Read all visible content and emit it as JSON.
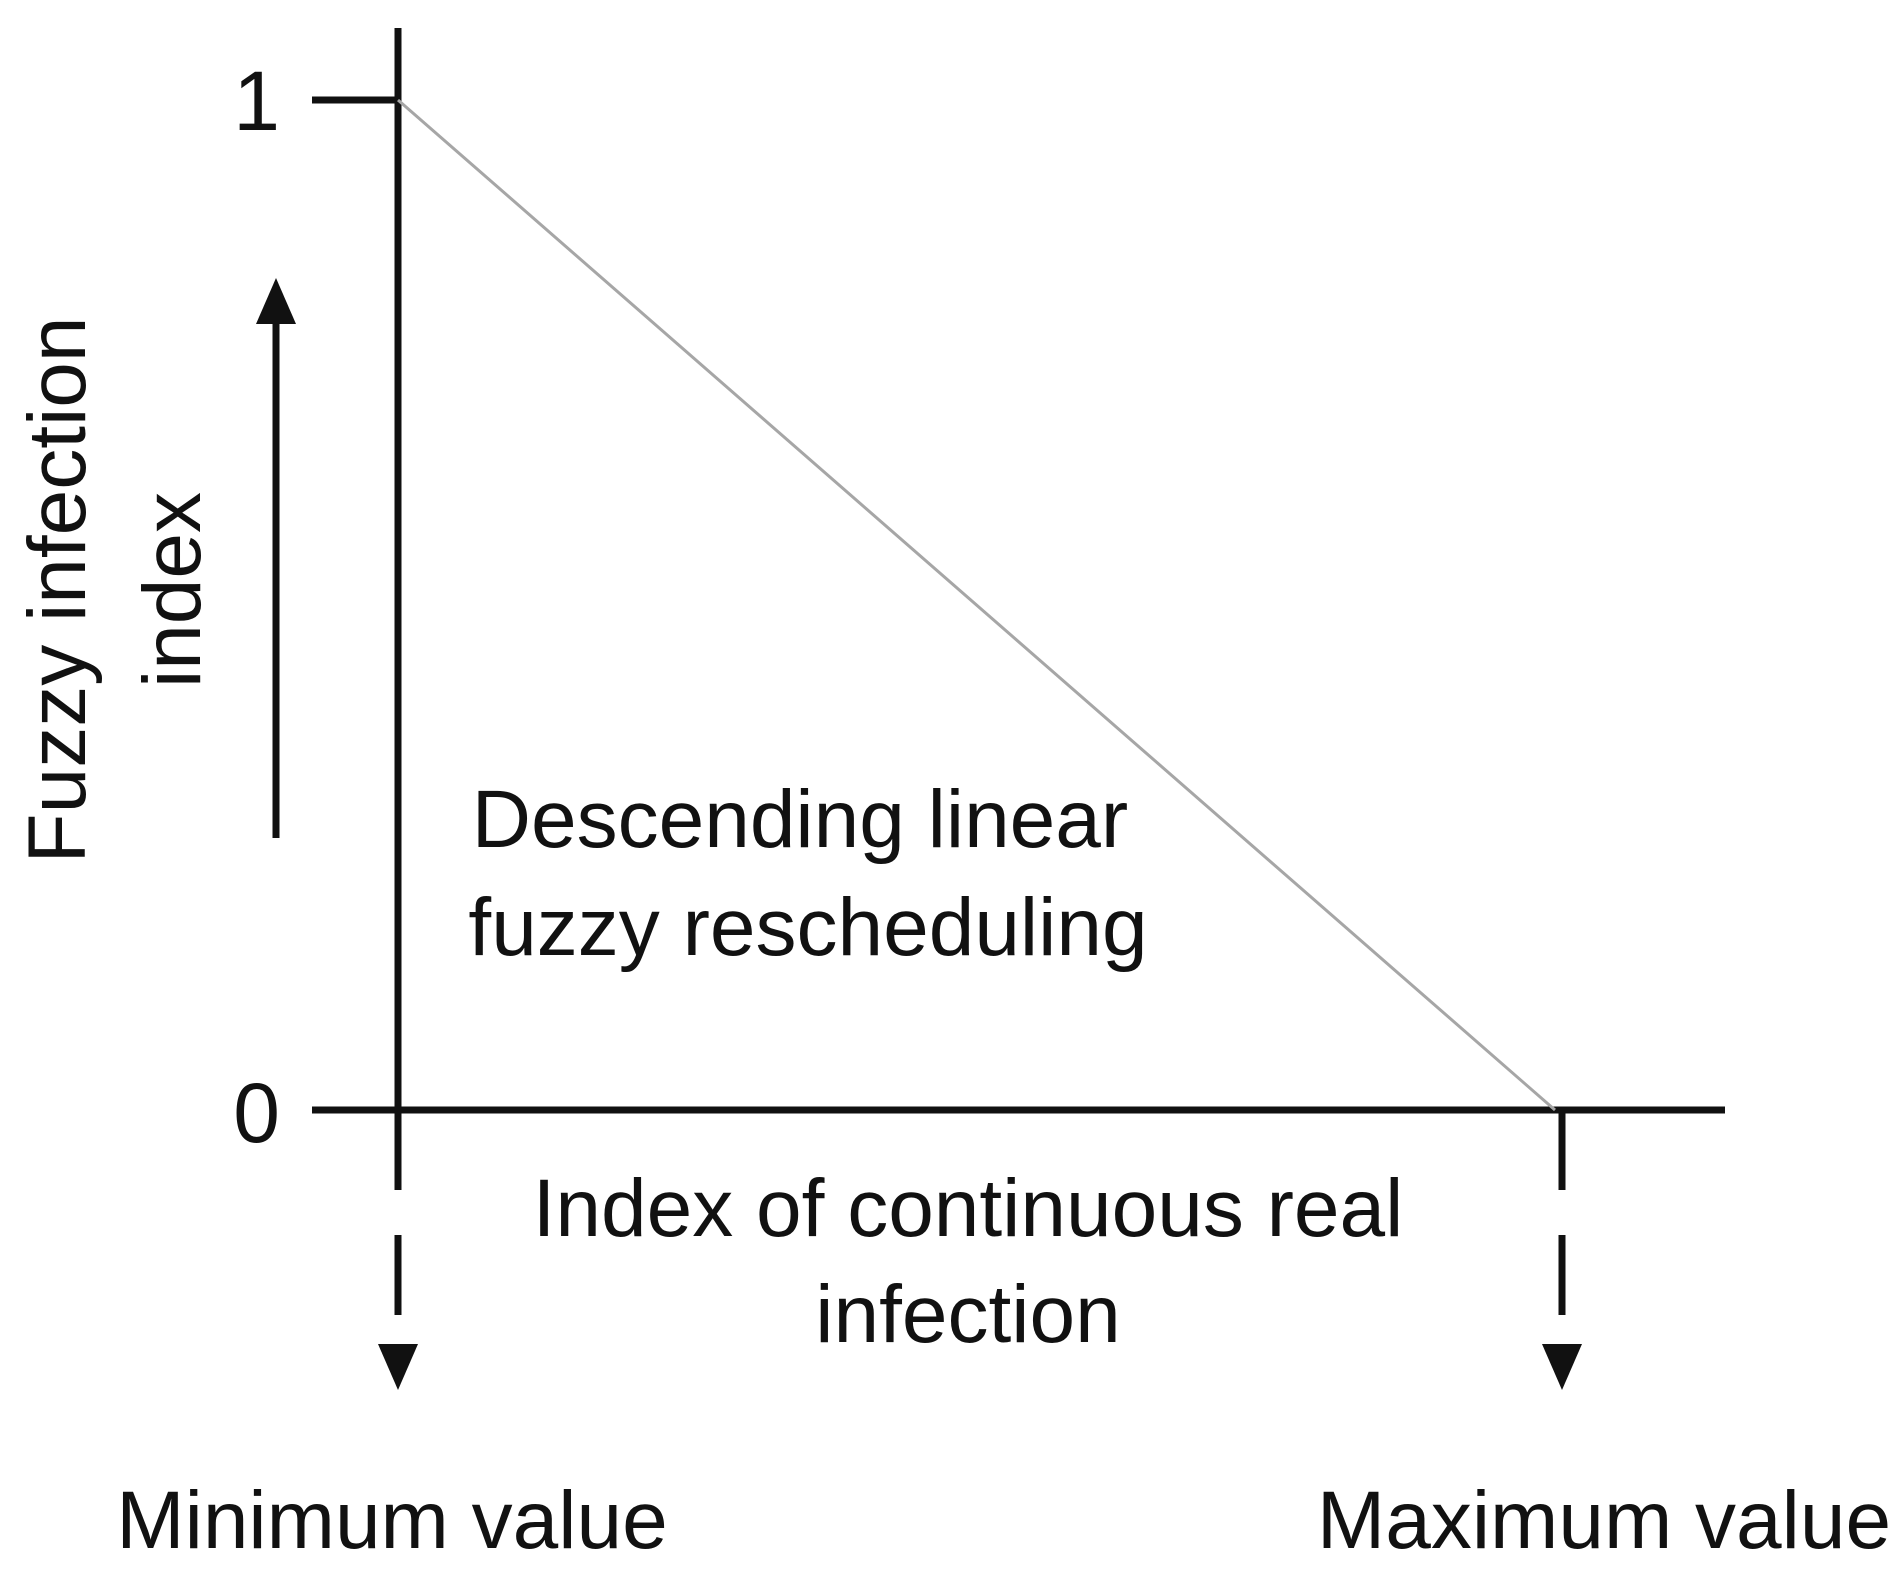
{
  "diagram": {
    "y_tick_top": "1",
    "y_tick_bottom": "0",
    "y_axis_label_line1": "Fuzzy infection",
    "y_axis_label_line2": "index",
    "function_label_line1": "Descending linear",
    "function_label_line2": "fuzzy rescheduling",
    "x_axis_label_line1": "Index of continuous real",
    "x_axis_label_line2": "infection",
    "min_label": "Minimum value",
    "max_label": "Maximum value"
  },
  "colors": {
    "ink": "#111111",
    "membership_line": "#a6a6a6",
    "background": "#ffffff"
  }
}
